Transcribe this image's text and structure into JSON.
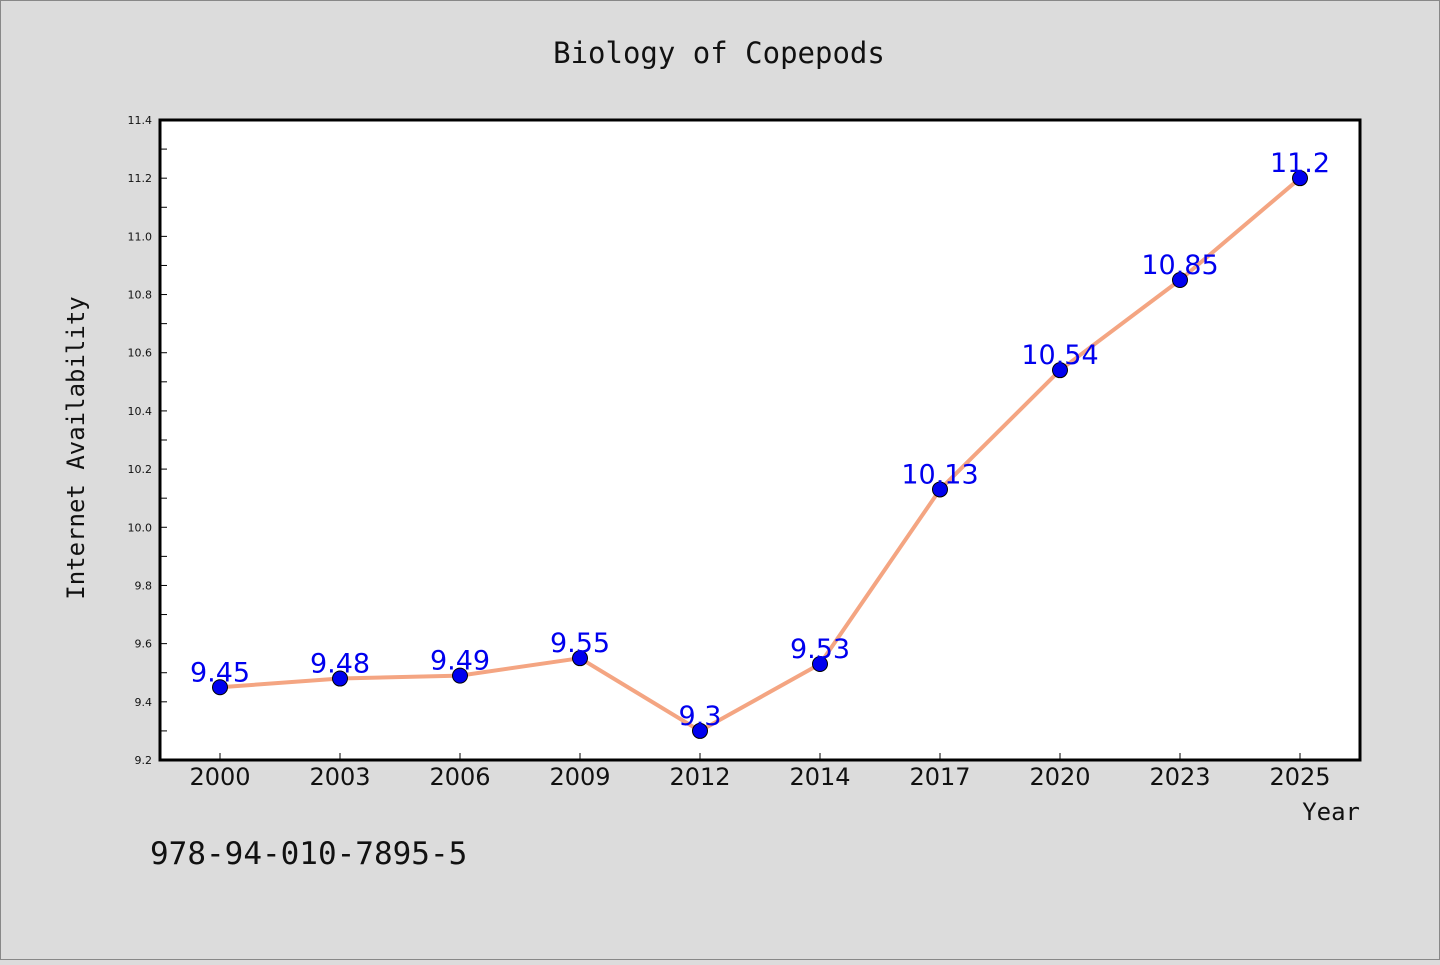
{
  "chart_data": {
    "type": "line",
    "title": "Biology of Copepods",
    "xlabel": "Year",
    "ylabel": "Internet Availability",
    "categories": [
      "2000",
      "2003",
      "2006",
      "2009",
      "2012",
      "2014",
      "2017",
      "2020",
      "2023",
      "2025"
    ],
    "series": [
      {
        "values": [
          9.45,
          9.48,
          9.49,
          9.55,
          9.3,
          9.53,
          10.13,
          10.54,
          10.85,
          11.2
        ],
        "data_labels": [
          "9.45",
          "9.48",
          "9.49",
          "9.55",
          "9.3",
          "9.53",
          "10.13",
          "10.54",
          "10.85",
          "11.2"
        ],
        "line_color": "#f4a582",
        "marker_color": "#0000ee",
        "label_color": "#0000ee"
      }
    ],
    "ylim": [
      9.2,
      11.4
    ],
    "yticks": [
      "9.2",
      "9.4",
      "9.6",
      "9.8",
      "10.0",
      "10.2",
      "10.4",
      "10.6",
      "10.8",
      "11.0",
      "11.2",
      "11.4"
    ],
    "grid": false,
    "legend": "none",
    "annotation": "978-94-010-7895-5",
    "background_color": "#dcdcdc",
    "plot_background_color": "#ffffff"
  }
}
